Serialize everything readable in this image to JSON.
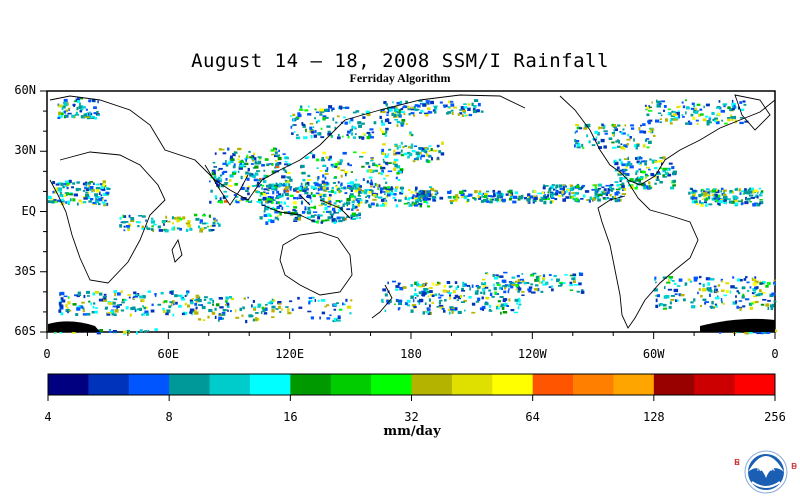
{
  "title": "August 14 – 18, 2008 SSM/I Rainfall",
  "subtitle": "Ferriday Algorithm",
  "map": {
    "lat_labels": [
      "60N",
      "30N",
      "EQ",
      "30S",
      "60S"
    ],
    "lat_values": [
      60,
      30,
      0,
      -30,
      -60
    ],
    "lon_labels": [
      "0",
      "60E",
      "120E",
      "180",
      "120W",
      "60W",
      "0"
    ],
    "lon_values": [
      0,
      60,
      120,
      180,
      240,
      300,
      360
    ],
    "lat_range": [
      -60,
      60
    ],
    "lon_range": [
      0,
      360
    ],
    "land_outline_color": "#000000",
    "no_rain_color": "#ffffff"
  },
  "colorbar": {
    "bins": [
      "#000080",
      "#0033bb",
      "#0055ff",
      "#009999",
      "#00cccc",
      "#00ffff",
      "#009900",
      "#00cc00",
      "#00ff00",
      "#b3b300",
      "#e0e000",
      "#ffff00",
      "#ff5500",
      "#ff8000",
      "#ffa500",
      "#990000",
      "#cc0000",
      "#ff0000"
    ],
    "tick_labels": [
      "4",
      "8",
      "16",
      "32",
      "64",
      "128",
      "256"
    ],
    "tick_values": [
      4,
      8,
      16,
      32,
      64,
      128,
      256
    ],
    "units": "mm/day"
  },
  "logo": {
    "left_letters": [
      "E",
      "S",
      "R",
      "L"
    ],
    "right_letters": [
      "P",
      "S",
      "D"
    ],
    "center_text": "NOAA"
  }
}
